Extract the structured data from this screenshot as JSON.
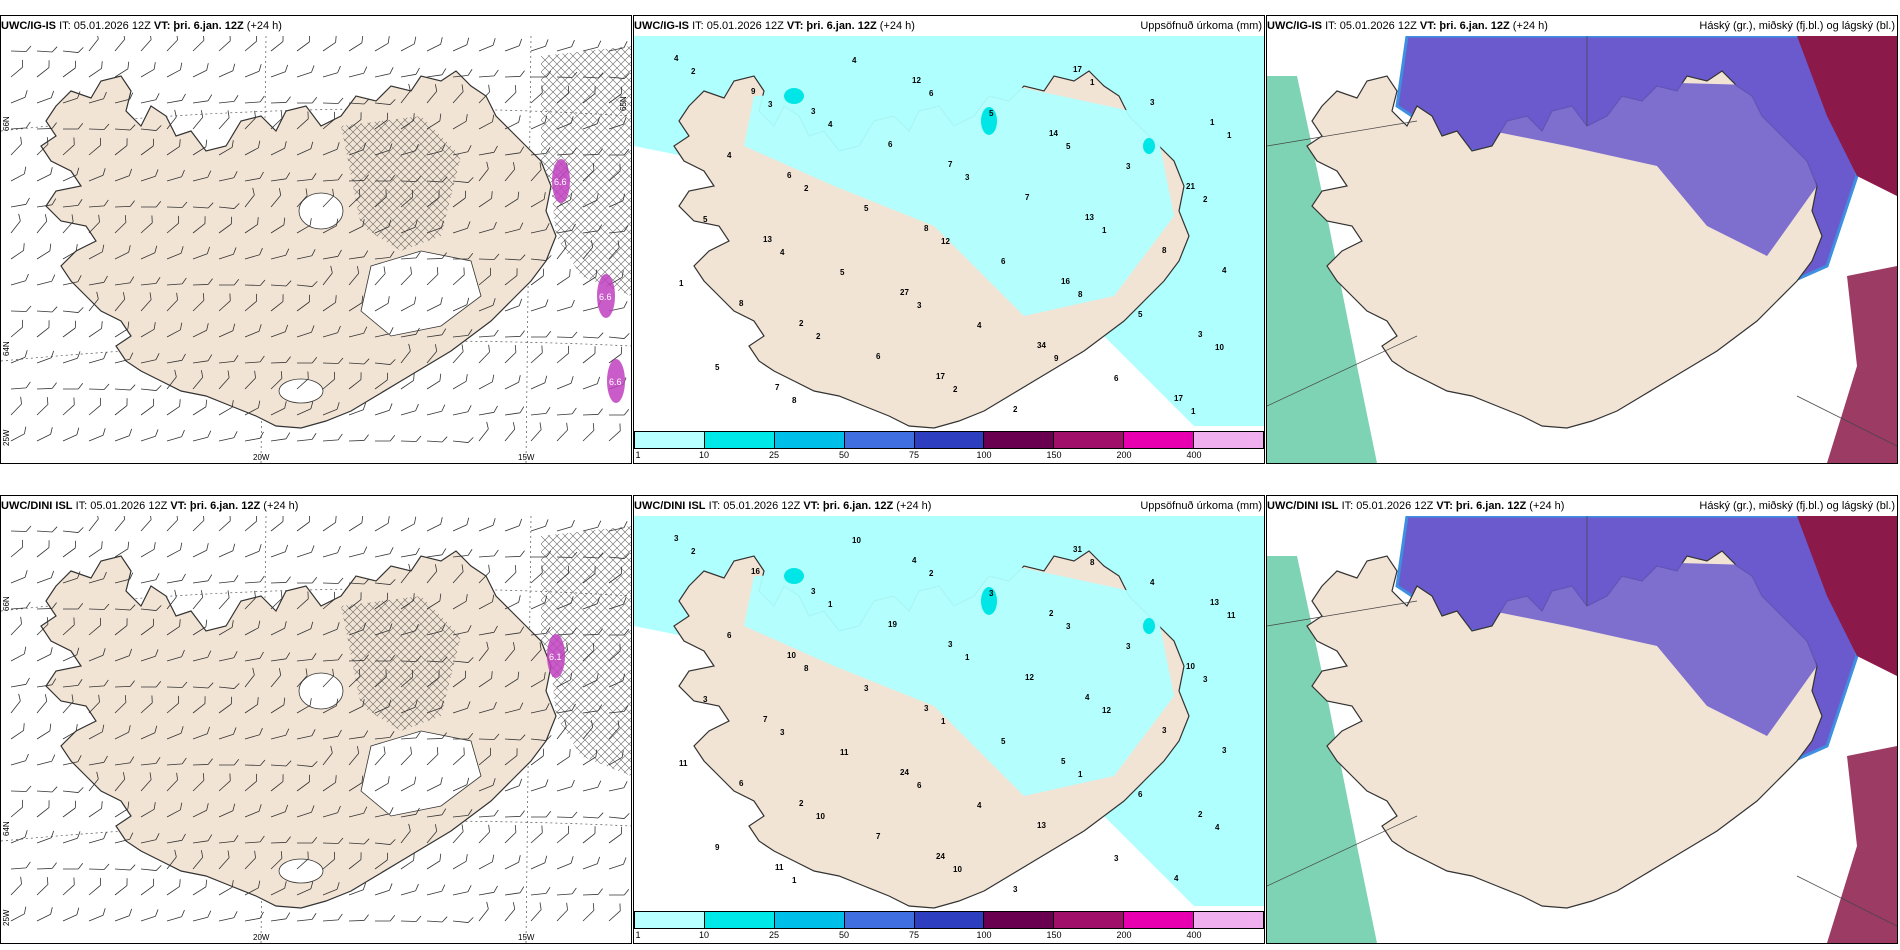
{
  "colors": {
    "land": "#f2e4d4",
    "sea": "#ffffff",
    "coast": "#333333",
    "precip_light": "#b0ffff",
    "precip_mid": "#00e5e5",
    "cloud_high": "#6a5acd",
    "cloud_high_edge": "#3e8fe0",
    "cloud_low": "#8b1a4a",
    "wind_purple": "#c040c0",
    "green_front": "#5cc8a0"
  },
  "rows": [
    {
      "model": "UWC/IG-IS",
      "it_label": "IT: 05.01.2026 12Z",
      "vt_label": "VT: þri. 6.jan. 12Z",
      "lead": "(+24 h)",
      "precip_title": "Uppsöfnuð úrkoma (mm)",
      "cloud_title": "Háský (gr.), miðský (fj.bl.) og lágský (bl.)",
      "precip_numbers": [
        "4",
        "3",
        "7",
        "13",
        "4",
        "2",
        "17",
        "17",
        "1",
        "6",
        "8",
        "16",
        "3",
        "7",
        "12",
        "14",
        "21",
        "13",
        "27",
        "34",
        "17",
        "9",
        "6",
        "7",
        "8",
        "8",
        "6",
        "2",
        "3",
        "4",
        "5",
        "6",
        "5",
        "5",
        "4",
        "5",
        "3",
        "5",
        "5",
        "4",
        "6",
        "2",
        "4",
        "3",
        "1",
        "1",
        "2",
        "2",
        "1",
        "1",
        "2",
        "12",
        "8",
        "10",
        "8",
        "6",
        "5",
        "2",
        "4",
        "3",
        "9",
        "1",
        "3"
      ],
      "lon_labels": [
        "20W",
        "15W"
      ],
      "lat_labels": [
        "66N",
        "64N",
        "25W",
        "65N"
      ],
      "wind_values": [
        "6.6",
        "6.6",
        "6.6"
      ]
    },
    {
      "model": "UWC/DINI ISL",
      "it_label": "IT: 05.01.2026 12Z",
      "vt_label": "VT: þri. 6.jan. 12Z",
      "lead": "(+24 h)",
      "precip_title": "Uppsöfnuð úrkoma (mm)",
      "cloud_title": "Háský (gr.), miðský (fj.bl.) og lágský (bl.)",
      "precip_numbers": [
        "3",
        "3",
        "3",
        "4",
        "3",
        "2",
        "24",
        "31",
        "13",
        "10",
        "3",
        "5",
        "2",
        "11",
        "4",
        "2",
        "10",
        "7",
        "24",
        "13",
        "4",
        "16",
        "19",
        "12",
        "3",
        "6",
        "7",
        "3",
        "4",
        "6",
        "3",
        "5",
        "6",
        "9",
        "10",
        "3",
        "3",
        "3",
        "11",
        "4",
        "3",
        "2",
        "1",
        "1",
        "12",
        "11",
        "10",
        "10",
        "8",
        "11",
        "8",
        "1",
        "1",
        "4",
        "1",
        "2",
        "3",
        "3",
        "3",
        "6"
      ],
      "lon_labels": [
        "20W",
        "15W"
      ],
      "lat_labels": [
        "66N",
        "64N",
        "25W"
      ],
      "wind_values": [
        "6.1"
      ]
    }
  ],
  "colorbar": {
    "ticks": [
      "1",
      "10",
      "25",
      "50",
      "75",
      "100",
      "150",
      "200",
      "400"
    ],
    "colors": [
      "#b8ffff",
      "#00e8e8",
      "#00bfe8",
      "#3f6fe0",
      "#2e3ec0",
      "#6a0050",
      "#a0106a",
      "#e800b0",
      "#f0b0f0"
    ]
  }
}
